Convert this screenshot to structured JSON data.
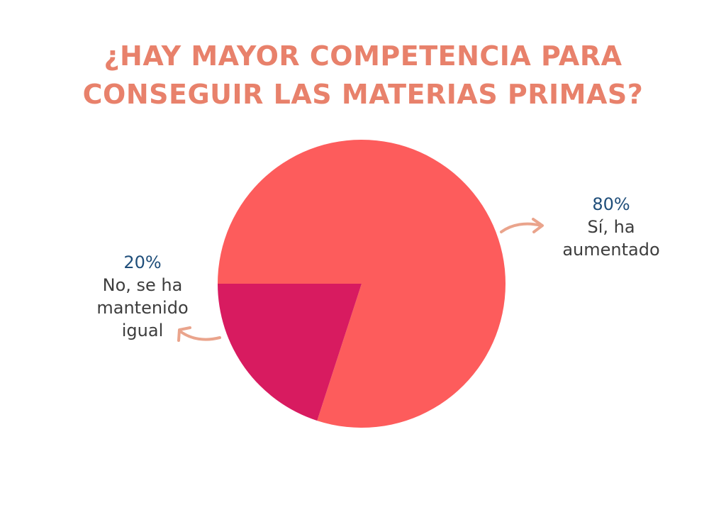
{
  "chart_data": {
    "type": "pie",
    "title_lines": [
      "¿HAY MAYOR COMPETENCIA PARA",
      "CONSEGUIR LAS MATERIAS PRIMAS?"
    ],
    "slices": [
      {
        "label": "Sí, ha aumentado",
        "label_lines": [
          "Sí, ha",
          "aumentado"
        ],
        "value": 80,
        "value_label": "80%",
        "color": "#fd5c5c"
      },
      {
        "label": "No, se ha mantenido igual",
        "label_lines": [
          "No, se ha",
          "mantenido",
          "igual"
        ],
        "value": 20,
        "value_label": "20%",
        "color": "#d81b60"
      }
    ],
    "legend": "none"
  },
  "colors": {
    "title": "#e8816b",
    "percent": "#1f4e7a",
    "label": "#3d3d3d",
    "arrow": "#eaa48c"
  }
}
